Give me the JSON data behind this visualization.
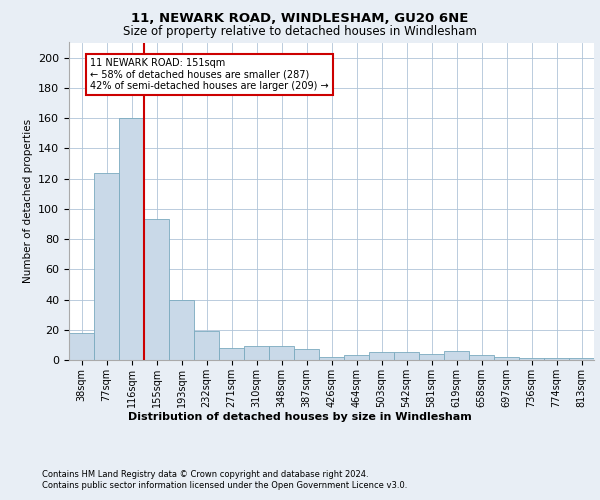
{
  "title1": "11, NEWARK ROAD, WINDLESHAM, GU20 6NE",
  "title2": "Size of property relative to detached houses in Windlesham",
  "xlabel": "Distribution of detached houses by size in Windlesham",
  "ylabel": "Number of detached properties",
  "footer1": "Contains HM Land Registry data © Crown copyright and database right 2024.",
  "footer2": "Contains public sector information licensed under the Open Government Licence v3.0.",
  "bar_labels": [
    "38sqm",
    "77sqm",
    "116sqm",
    "155sqm",
    "193sqm",
    "232sqm",
    "271sqm",
    "310sqm",
    "348sqm",
    "387sqm",
    "426sqm",
    "464sqm",
    "503sqm",
    "542sqm",
    "581sqm",
    "619sqm",
    "658sqm",
    "697sqm",
    "736sqm",
    "774sqm",
    "813sqm"
  ],
  "bar_values": [
    18,
    124,
    160,
    93,
    40,
    19,
    8,
    9,
    9,
    7,
    2,
    3,
    5,
    5,
    4,
    6,
    3,
    2,
    1,
    1,
    1
  ],
  "bar_color": "#c9d9e8",
  "bar_edge_color": "#7aaabf",
  "vline_color": "#cc0000",
  "vline_index": 2.5,
  "ylim_max": 210,
  "yticks": [
    0,
    20,
    40,
    60,
    80,
    100,
    120,
    140,
    160,
    180,
    200
  ],
  "annotation_text_line1": "11 NEWARK ROAD: 151sqm",
  "annotation_text_line2": "← 58% of detached houses are smaller (287)",
  "annotation_text_line3": "42% of semi-detached houses are larger (209) →",
  "annotation_box_color": "#cc0000",
  "bg_color": "#e8eef5",
  "plot_bg": "#ffffff",
  "grid_color": "#b0c4d8",
  "title1_fontsize": 9.5,
  "title2_fontsize": 8.5,
  "ylabel_fontsize": 7.5,
  "tick_fontsize": 7,
  "xlabel_fontsize": 8,
  "footer_fontsize": 6,
  "annot_fontsize": 7
}
